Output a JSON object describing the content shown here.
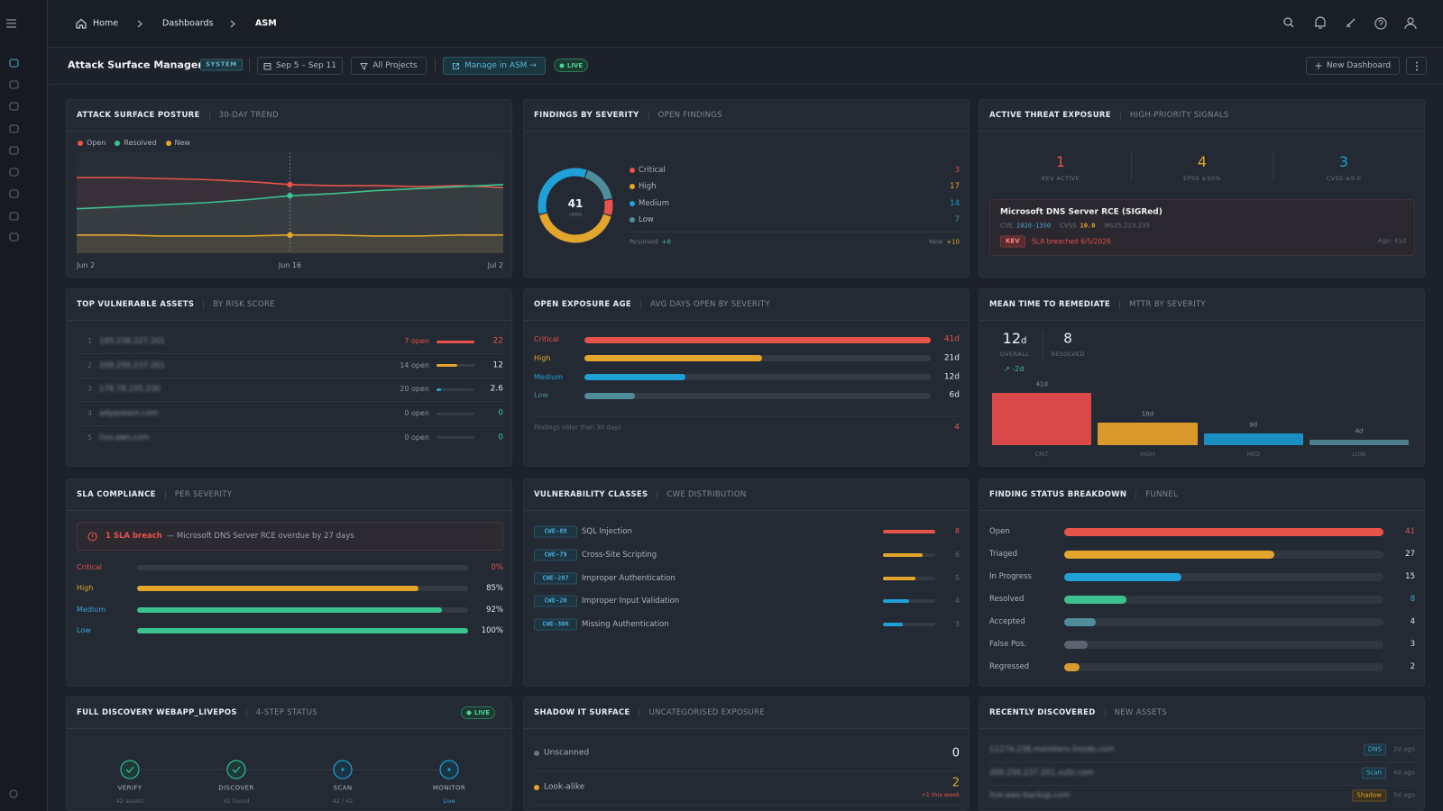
{
  "topbar": {
    "breadcrumb": [
      "Home",
      "Dashboards",
      "ASM"
    ]
  },
  "toolbar": {
    "title": "Attack Surface Manageme",
    "badge": "SYSTEM",
    "date_range": "Sep 5 – Sep 11",
    "filter": "All Projects",
    "manage": "Manage in ASM →",
    "live": "LIVE",
    "new_dashboard": "New Dashboard"
  },
  "posture": {
    "title": "ATTACK SURFACE POSTURE",
    "subtitle": "30-DAY TREND",
    "chart": {
      "type": "line",
      "categories": [
        "Jun 2",
        null,
        null,
        null,
        null,
        "Jun 16",
        null,
        null,
        null,
        null,
        "Jul 2"
      ],
      "series": [
        {
          "name": "Open",
          "color": "#e5534b",
          "values": [
            75,
            75,
            74,
            73,
            71,
            68,
            67,
            67,
            66,
            67,
            65
          ]
        },
        {
          "name": "Resolved",
          "color": "#3cc28e",
          "values": [
            44,
            46,
            48,
            50,
            53,
            57,
            59,
            62,
            64,
            66,
            68
          ]
        },
        {
          "name": "New",
          "color": "#e3a52b",
          "values": [
            18,
            18,
            17,
            17,
            17,
            18,
            18,
            17,
            17,
            18,
            18
          ]
        }
      ],
      "ylim": [
        0,
        100
      ]
    }
  },
  "severity": {
    "title": "FINDINGS BY SEVERITY",
    "subtitle": "OPEN FINDINGS",
    "total": 41,
    "total_label": "OPEN",
    "chart": {
      "type": "pie",
      "categories": [
        "Critical",
        "High",
        "Medium",
        "Low"
      ],
      "values": [
        3,
        17,
        14,
        7
      ],
      "colors": [
        "#e5534b",
        "#e3a52b",
        "#1fa0d6",
        "#4e8d99"
      ]
    },
    "resolved": {
      "label": "Resolved",
      "value": "+8"
    },
    "new": {
      "label": "New",
      "value": "+10"
    }
  },
  "threat": {
    "title": "ACTIVE THREAT EXPOSURE",
    "subtitle": "HIGH-PRIORITY SIGNALS",
    "stats": [
      {
        "value": 1,
        "label": "KEV ACTIVE",
        "color": "#e5534b"
      },
      {
        "value": 4,
        "label": "EPSS ≥50%",
        "color": "#e3a52b"
      },
      {
        "value": 3,
        "label": "CVSS ≥9.0",
        "color": "#1fa0d6"
      }
    ],
    "card": {
      "title": "Microsoft DNS Server RCE (SIGRed)",
      "cve_label": "CVE",
      "cve": "2020-1350",
      "cvss_label": "CVSS",
      "cvss": "10.0",
      "ref": "MS25.213.235",
      "tag": "KEV",
      "sla": "SLA breached 6/5/2026",
      "age": "Age: 41d"
    }
  },
  "assets": {
    "title": "TOP VULNERABLE ASSETS",
    "subtitle": "BY RISK SCORE",
    "rows": [
      {
        "rank": 1,
        "host": "185.238.227.201",
        "open": "7 open",
        "score": 22,
        "color": "#e5534b"
      },
      {
        "rank": 2,
        "host": "209.250.237.201",
        "open": "14 open",
        "score": 12,
        "color": "#e3a52b"
      },
      {
        "rank": 3,
        "host": "176.78.155.230",
        "open": "20 open",
        "score": 2.6,
        "color": "#1fa0d6"
      },
      {
        "rank": 4,
        "host": "adyasearn.com",
        "open": "0 open",
        "score": 0,
        "color": "#5b6470"
      },
      {
        "rank": 5,
        "host": "live-aws.com",
        "open": "0 open",
        "score": 0,
        "color": "#5b6470"
      }
    ]
  },
  "exposure": {
    "title": "OPEN EXPOSURE AGE",
    "subtitle": "AVG DAYS OPEN BY SEVERITY",
    "chart": {
      "type": "bar",
      "categories": [
        "Critical",
        "High",
        "Medium",
        "Low"
      ],
      "values": [
        41,
        21,
        12,
        6
      ],
      "value_labels": [
        "41d",
        "21d",
        "12d",
        "6d"
      ],
      "colors": [
        "#e5534b",
        "#e3a52b",
        "#1fa0d6",
        "#4e8d99"
      ]
    },
    "footer": {
      "label": "Findings older than 30 days",
      "value": 4
    }
  },
  "mttr": {
    "title": "MEAN TIME TO REMEDIATE",
    "subtitle": "MTTR BY SEVERITY",
    "overall": {
      "value": 12,
      "unit": "d",
      "label": "OVERALL"
    },
    "resolved": {
      "value": 8,
      "label": "RESOLVED"
    },
    "trend": "↗ -2d",
    "chart": {
      "type": "bar",
      "categories": [
        "CRIT",
        "HIGH",
        "MED",
        "LOW"
      ],
      "values": [
        41,
        18,
        9,
        4
      ],
      "value_labels": [
        "41d",
        "18d",
        "9d",
        "4d"
      ],
      "colors": [
        "#d9494a",
        "#d99a2b",
        "#1c8fc2",
        "#4e7d8c"
      ]
    }
  },
  "sla": {
    "title": "SLA COMPLIANCE",
    "subtitle": "PER SEVERITY",
    "alert": {
      "count": "1 SLA breach",
      "text": "— Microsoft DNS Server RCE overdue by 27 days"
    },
    "chart": {
      "type": "bar",
      "categories": [
        "Critical",
        "High",
        "Medium",
        "Low"
      ],
      "values": [
        0,
        85,
        92,
        100
      ],
      "value_labels": [
        "0%",
        "85%",
        "92%",
        "100%"
      ],
      "colors": [
        "#e5534b",
        "#e3a52b",
        "#3cc28e",
        "#3cc28e"
      ],
      "xlim": [
        0,
        100
      ]
    }
  },
  "vuln": {
    "title": "VULNERABILITY CLASSES",
    "subtitle": "CWE DISTRIBUTION",
    "cwe": [
      "CWE-89",
      "CWE-79",
      "CWE-287",
      "CWE-20",
      "CWE-306"
    ],
    "chart": {
      "type": "bar",
      "categories": [
        "SQL Injection",
        "Cross-Site Scripting",
        "Improper Authentication",
        "Improper Input Validation",
        "Missing Authentication"
      ],
      "values": [
        8,
        6,
        5,
        4,
        3
      ],
      "colors": [
        "#e5534b",
        "#e3a52b",
        "#e3a52b",
        "#1fa0d6",
        "#1fa0d6"
      ]
    }
  },
  "status": {
    "title": "FINDING STATUS BREAKDOWN",
    "subtitle": "FUNNEL",
    "chart": {
      "type": "bar",
      "categories": [
        "Open",
        "Triaged",
        "In Progress",
        "Resolved",
        "Accepted",
        "False Pos.",
        "Regressed"
      ],
      "values": [
        41,
        27,
        15,
        8,
        4,
        3,
        2
      ],
      "colors": [
        "#e5534b",
        "#e3a52b",
        "#1fa0d6",
        "#3cc28e",
        "#4e8d99",
        "#5b6470",
        "#d99a2b"
      ]
    }
  },
  "discovery": {
    "title": "FULL DISCOVERY WEBAPP_LIVEPOS",
    "subtitle": "4-STEP STATUS",
    "live": "LIVE",
    "steps": [
      {
        "label": "VERIFY",
        "detail": "42 assets"
      },
      {
        "label": "DISCOVER",
        "detail": "42 found"
      },
      {
        "label": "SCAN",
        "detail": "42 / 42"
      },
      {
        "label": "MONITOR",
        "detail": "Live"
      }
    ]
  },
  "shadow": {
    "title": "SHADOW IT SURFACE",
    "subtitle": "UNCATEGORISED EXPOSURE",
    "rows": [
      {
        "label": "Unscanned",
        "value": 0
      },
      {
        "label": "Look-alike",
        "value": 2,
        "note": "+1 this week"
      }
    ]
  },
  "recent": {
    "title": "RECENTLY DISCOVERED",
    "subtitle": "NEW ASSETS",
    "rows": [
      {
        "host": "11274-238.members.linode.com",
        "tag": "DNS",
        "age": "2d ago"
      },
      {
        "host": "209.250.237.201.vultr.com",
        "tag": "Scan",
        "age": "4d ago"
      },
      {
        "host": "live-aws-backup.com",
        "tag": "Shadow",
        "age": "5d ago"
      }
    ]
  }
}
